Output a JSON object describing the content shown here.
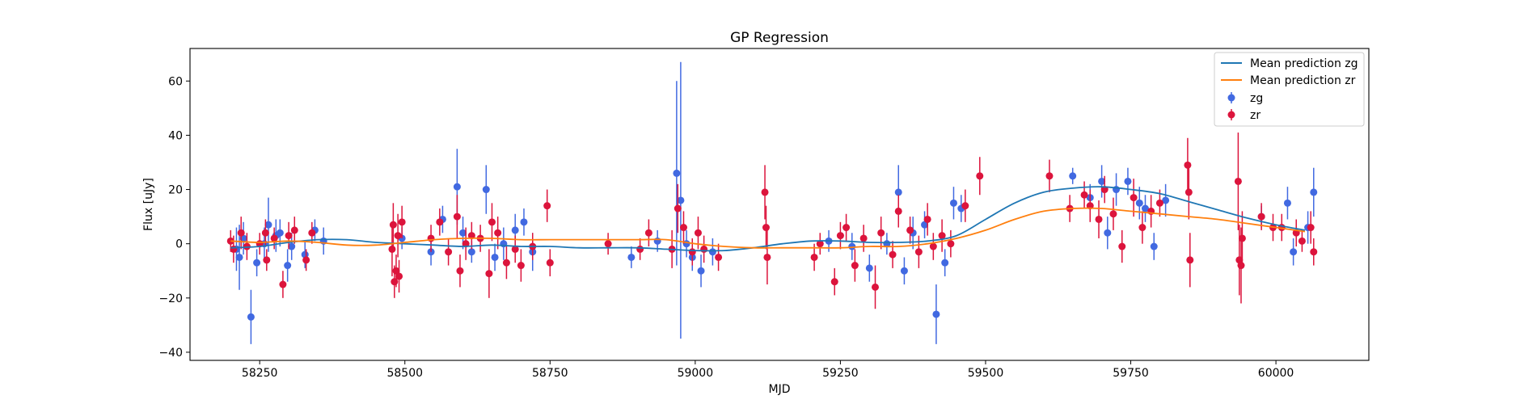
{
  "chart_data": {
    "type": "scatter",
    "title": "GP Regression",
    "xlabel": "MJD",
    "ylabel": "Flux [uJy]",
    "xlim": [
      58130,
      60160
    ],
    "ylim": [
      -43,
      72
    ],
    "xticks": [
      58250,
      58500,
      58750,
      59000,
      59250,
      59500,
      59750,
      60000
    ],
    "yticks": [
      -40,
      -20,
      0,
      20,
      40,
      60
    ],
    "grid": false,
    "legend_position": "top-right",
    "legend": {
      "lines": [
        {
          "label": "Mean prediction zg",
          "color": "#1f77b4"
        },
        {
          "label": "Mean prediction zr",
          "color": "#ff7f0e"
        }
      ],
      "points": [
        {
          "label": "zg",
          "color": "#4169e1"
        },
        {
          "label": "zr",
          "color": "#dc143c"
        }
      ]
    },
    "series": [
      {
        "name": "Mean prediction zg",
        "type": "line",
        "color": "#1f77b4",
        "x": [
          58200,
          58250,
          58300,
          58350,
          58400,
          58450,
          58500,
          58550,
          58600,
          58650,
          58700,
          58750,
          58800,
          58850,
          58900,
          58950,
          59000,
          59050,
          59100,
          59150,
          59200,
          59250,
          59300,
          59350,
          59400,
          59450,
          59500,
          59550,
          59600,
          59650,
          59700,
          59750,
          59800,
          59850,
          59900,
          59950,
          60000,
          60050
        ],
        "y": [
          -1.5,
          -1,
          0.5,
          1.5,
          1.5,
          0.5,
          0,
          -0.5,
          -1,
          -0.5,
          -1,
          -1,
          -1.5,
          -1.5,
          -1.5,
          -2,
          -2.5,
          -2.5,
          -1.5,
          0,
          1,
          1,
          0.5,
          0.5,
          1,
          3,
          9,
          15,
          19,
          20.5,
          21,
          20,
          18.5,
          15.5,
          12.5,
          9.5,
          7,
          5
        ]
      },
      {
        "name": "Mean prediction zr",
        "type": "line",
        "color": "#ff7f0e",
        "x": [
          58200,
          58250,
          58300,
          58350,
          58400,
          58450,
          58500,
          58550,
          58600,
          58650,
          58700,
          58750,
          58800,
          58850,
          58900,
          58950,
          59000,
          59050,
          59100,
          59150,
          59200,
          59250,
          59300,
          59350,
          59400,
          59450,
          59500,
          59550,
          59600,
          59650,
          59700,
          59750,
          59800,
          59850,
          59900,
          59950,
          60000,
          60050
        ],
        "y": [
          1,
          0.5,
          1,
          0.5,
          -0.5,
          -0.5,
          0.5,
          1.5,
          2,
          2,
          1.5,
          1.5,
          1.5,
          1.5,
          1.5,
          1.5,
          0,
          -1,
          -1.5,
          -1.5,
          -1.5,
          -1.5,
          -1,
          -1,
          0,
          2,
          5,
          9,
          12,
          13,
          13,
          12,
          11,
          10,
          9,
          7.5,
          6,
          4.5
        ]
      },
      {
        "name": "zg",
        "type": "errorbar",
        "color": "#4169e1",
        "points": [
          [
            58210,
            -2,
            8
          ],
          [
            58215,
            -5,
            12
          ],
          [
            58222,
            2,
            6
          ],
          [
            58235,
            -27,
            10
          ],
          [
            58245,
            -7,
            5
          ],
          [
            58258,
            0,
            6
          ],
          [
            58265,
            7,
            10
          ],
          [
            58278,
            3,
            6
          ],
          [
            58285,
            4,
            5
          ],
          [
            58298,
            -8,
            6
          ],
          [
            58305,
            -1,
            5
          ],
          [
            58328,
            -4,
            5
          ],
          [
            58345,
            5,
            4
          ],
          [
            58360,
            1,
            5
          ],
          [
            58495,
            2,
            4
          ],
          [
            58545,
            -3,
            5
          ],
          [
            58565,
            9,
            5
          ],
          [
            58590,
            21,
            14
          ],
          [
            58600,
            4,
            6
          ],
          [
            58615,
            -3,
            4
          ],
          [
            58640,
            20,
            9
          ],
          [
            58655,
            -5,
            5
          ],
          [
            58670,
            0,
            6
          ],
          [
            58690,
            5,
            6
          ],
          [
            58705,
            8,
            5
          ],
          [
            58720,
            -3,
            7
          ],
          [
            58890,
            -5,
            4
          ],
          [
            58935,
            1,
            4
          ],
          [
            58968,
            26,
            34
          ],
          [
            58975,
            16,
            51
          ],
          [
            58985,
            0,
            5
          ],
          [
            58995,
            -5,
            5
          ],
          [
            59010,
            -10,
            6
          ],
          [
            59030,
            -3,
            5
          ],
          [
            59230,
            1,
            4
          ],
          [
            59270,
            -1,
            5
          ],
          [
            59300,
            -9,
            5
          ],
          [
            59330,
            0,
            4
          ],
          [
            59350,
            19,
            10
          ],
          [
            59360,
            -10,
            5
          ],
          [
            59375,
            4,
            6
          ],
          [
            59395,
            7,
            5
          ],
          [
            59415,
            -26,
            11
          ],
          [
            59430,
            -7,
            5
          ],
          [
            59445,
            15,
            6
          ],
          [
            59458,
            13,
            5
          ],
          [
            59650,
            25,
            3
          ],
          [
            59680,
            17,
            5
          ],
          [
            59700,
            23,
            6
          ],
          [
            59710,
            4,
            6
          ],
          [
            59725,
            20,
            6
          ],
          [
            59745,
            23,
            5
          ],
          [
            59765,
            15,
            6
          ],
          [
            59775,
            13,
            5
          ],
          [
            59790,
            -1,
            5
          ],
          [
            59810,
            16,
            6
          ],
          [
            59975,
            10,
            4
          ],
          [
            60020,
            15,
            6
          ],
          [
            60030,
            -3,
            5
          ],
          [
            60055,
            6,
            6
          ],
          [
            60065,
            19,
            9
          ]
        ]
      },
      {
        "name": "zr",
        "type": "errorbar",
        "color": "#dc143c",
        "points": [
          [
            58200,
            1,
            4
          ],
          [
            58205,
            -2,
            5
          ],
          [
            58218,
            4,
            6
          ],
          [
            58228,
            -1,
            5
          ],
          [
            58250,
            0,
            4
          ],
          [
            58260,
            4,
            5
          ],
          [
            58262,
            -6,
            4
          ],
          [
            58275,
            2,
            4
          ],
          [
            58290,
            -15,
            5
          ],
          [
            58300,
            3,
            5
          ],
          [
            58310,
            5,
            5
          ],
          [
            58330,
            -6,
            4
          ],
          [
            58340,
            4,
            4
          ],
          [
            58478,
            -2,
            10
          ],
          [
            58480,
            7,
            8
          ],
          [
            58482,
            -14,
            6
          ],
          [
            58485,
            -10,
            6
          ],
          [
            58488,
            3,
            8
          ],
          [
            58490,
            -12,
            6
          ],
          [
            58495,
            8,
            6
          ],
          [
            58545,
            2,
            5
          ],
          [
            58560,
            8,
            5
          ],
          [
            58575,
            -3,
            5
          ],
          [
            58590,
            10,
            8
          ],
          [
            58595,
            -10,
            6
          ],
          [
            58605,
            0,
            6
          ],
          [
            58615,
            3,
            5
          ],
          [
            58630,
            2,
            5
          ],
          [
            58645,
            -11,
            9
          ],
          [
            58650,
            8,
            7
          ],
          [
            58660,
            4,
            6
          ],
          [
            58675,
            -7,
            6
          ],
          [
            58690,
            -2,
            5
          ],
          [
            58700,
            -8,
            6
          ],
          [
            58720,
            -1,
            5
          ],
          [
            58745,
            14,
            6
          ],
          [
            58750,
            -7,
            5
          ],
          [
            58850,
            0,
            4
          ],
          [
            58905,
            -2,
            4
          ],
          [
            58920,
            4,
            5
          ],
          [
            58960,
            -2,
            7
          ],
          [
            58970,
            13,
            9
          ],
          [
            58980,
            6,
            6
          ],
          [
            58995,
            -3,
            5
          ],
          [
            59005,
            4,
            6
          ],
          [
            59015,
            -2,
            5
          ],
          [
            59040,
            -5,
            5
          ],
          [
            59120,
            19,
            10
          ],
          [
            59122,
            6,
            8
          ],
          [
            59124,
            -5,
            10
          ],
          [
            59205,
            -5,
            5
          ],
          [
            59215,
            0,
            4
          ],
          [
            59240,
            -14,
            5
          ],
          [
            59250,
            3,
            5
          ],
          [
            59260,
            6,
            5
          ],
          [
            59275,
            -8,
            6
          ],
          [
            59290,
            2,
            5
          ],
          [
            59310,
            -16,
            8
          ],
          [
            59320,
            4,
            6
          ],
          [
            59340,
            -4,
            5
          ],
          [
            59350,
            12,
            6
          ],
          [
            59370,
            5,
            5
          ],
          [
            59385,
            -3,
            6
          ],
          [
            59400,
            9,
            6
          ],
          [
            59410,
            -1,
            5
          ],
          [
            59425,
            3,
            6
          ],
          [
            59440,
            0,
            5
          ],
          [
            59465,
            14,
            6
          ],
          [
            59490,
            25,
            7
          ],
          [
            59610,
            25,
            6
          ],
          [
            59645,
            13,
            5
          ],
          [
            59670,
            18,
            5
          ],
          [
            59680,
            14,
            6
          ],
          [
            59695,
            9,
            7
          ],
          [
            59705,
            20,
            5
          ],
          [
            59720,
            11,
            6
          ],
          [
            59735,
            -1,
            6
          ],
          [
            59755,
            17,
            7
          ],
          [
            59770,
            6,
            6
          ],
          [
            59785,
            12,
            6
          ],
          [
            59800,
            15,
            5
          ],
          [
            59848,
            29,
            10
          ],
          [
            59850,
            19,
            10
          ],
          [
            59852,
            -6,
            10
          ],
          [
            59935,
            23,
            18
          ],
          [
            59937,
            -6,
            13
          ],
          [
            59940,
            -8,
            14
          ],
          [
            59942,
            2,
            10
          ],
          [
            59975,
            10,
            5
          ],
          [
            59995,
            6,
            5
          ],
          [
            60010,
            6,
            5
          ],
          [
            60035,
            4,
            5
          ],
          [
            60045,
            1,
            4
          ],
          [
            60060,
            6,
            6
          ],
          [
            60065,
            -3,
            5
          ]
        ]
      }
    ]
  }
}
